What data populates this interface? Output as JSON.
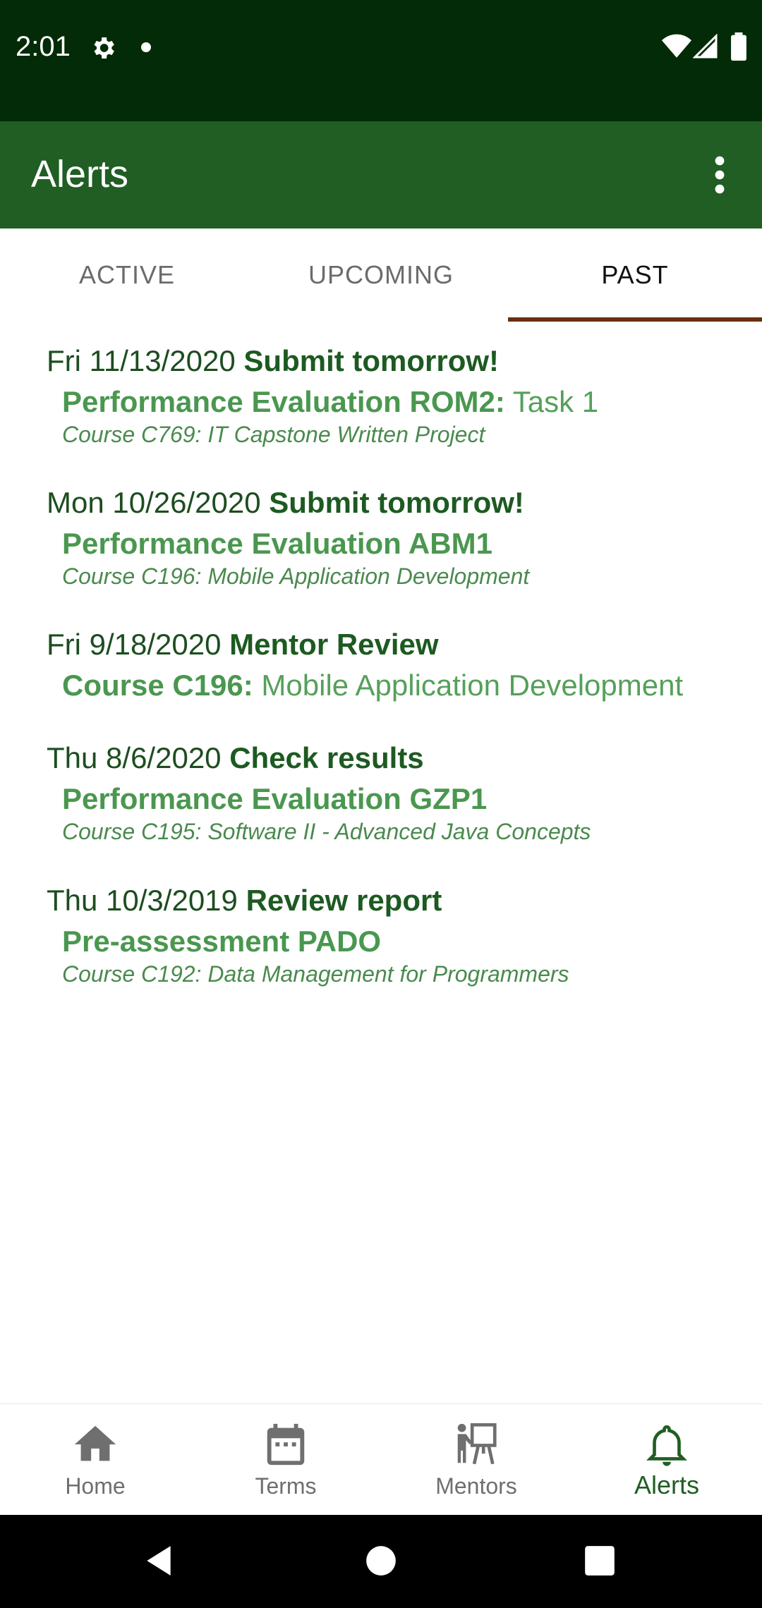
{
  "status_bar": {
    "time": "2:01",
    "icons": [
      "gear-icon",
      "dot-icon",
      "wifi-icon",
      "signal-icon",
      "battery-icon"
    ]
  },
  "app_bar": {
    "title": "Alerts",
    "menu_icon": "more-vert-icon"
  },
  "tabs": [
    {
      "label": "ACTIVE",
      "selected": false
    },
    {
      "label": "UPCOMING",
      "selected": false
    },
    {
      "label": "PAST",
      "selected": true
    }
  ],
  "alerts": [
    {
      "date": "Fri 11/13/2020",
      "headline": "Submit tomorrow!",
      "title_bold": "Performance Evaluation ROM2:",
      "title_rest": " Task 1",
      "course": "Course C769: IT Capstone Written Project"
    },
    {
      "date": "Mon 10/26/2020",
      "headline": "Submit tomorrow!",
      "title_bold": "Performance Evaluation ABM1",
      "title_rest": "",
      "course": "Course C196: Mobile Application Development"
    },
    {
      "date": "Fri 9/18/2020",
      "headline": "Mentor Review",
      "title_bold": "Course C196:",
      "title_rest": " Mobile Application Development",
      "course": ""
    },
    {
      "date": "Thu 8/6/2020",
      "headline": "Check results",
      "title_bold": "Performance Evaluation GZP1",
      "title_rest": "",
      "course": "Course C195: Software II - Advanced Java Concepts"
    },
    {
      "date": "Thu 10/3/2019",
      "headline": "Review report",
      "title_bold": "Pre-assessment PADO",
      "title_rest": "",
      "course": "Course C192: Data Management for Programmers"
    }
  ],
  "bottom_nav": [
    {
      "label": "Home",
      "icon": "home-icon",
      "selected": false
    },
    {
      "label": "Terms",
      "icon": "calendar-icon",
      "selected": false
    },
    {
      "label": "Mentors",
      "icon": "mentor-icon",
      "selected": false
    },
    {
      "label": "Alerts",
      "icon": "bell-icon",
      "selected": true
    }
  ],
  "colors": {
    "status_bar": "#032b08",
    "app_bar": "#205e24",
    "tab_indicator": "#6b2e0e",
    "accent_green": "#55a05a"
  }
}
